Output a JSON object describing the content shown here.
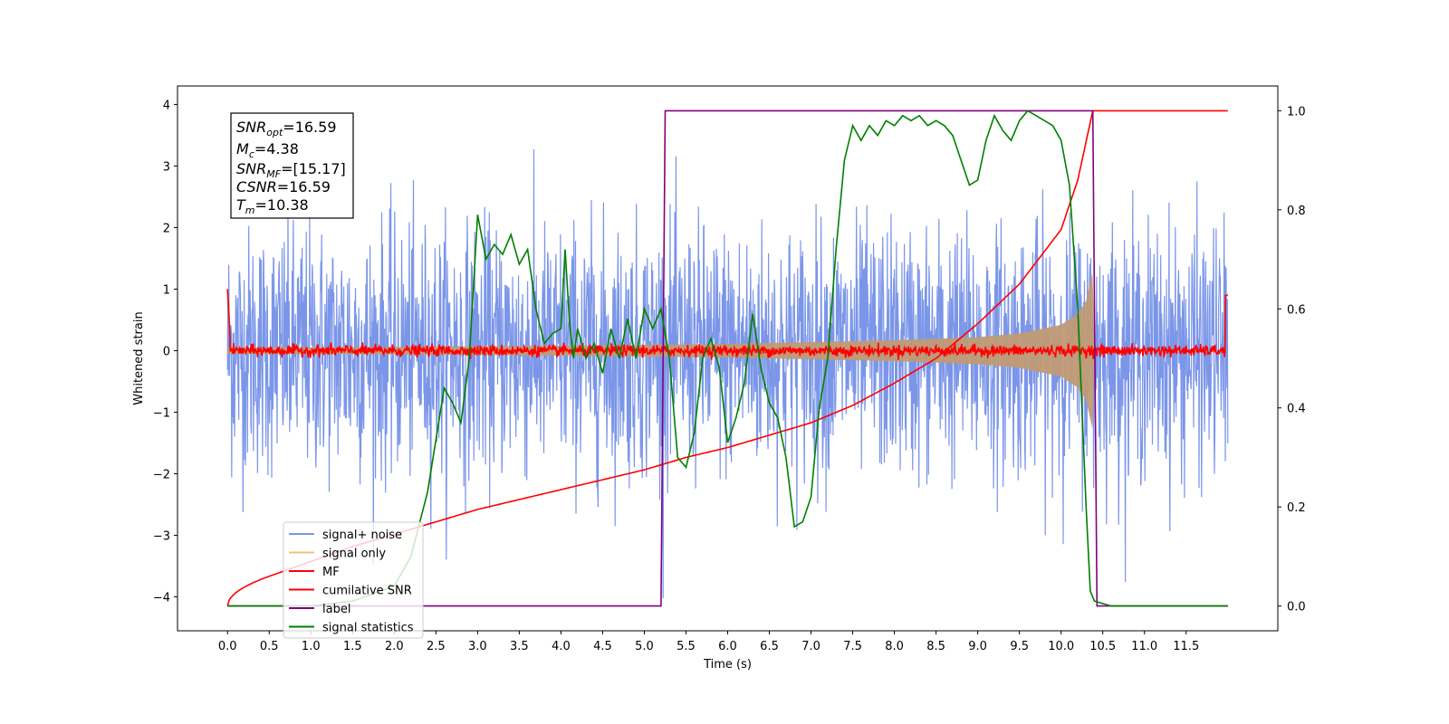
{
  "chart_data": {
    "type": "line",
    "xlabel": "Time (s)",
    "ylabel": "Whitened strain",
    "xlim": [
      -0.6,
      12.6
    ],
    "ylim": [
      -4.55,
      4.3
    ],
    "y2lim": [
      -0.05,
      1.05
    ],
    "x_ticks": [
      "0.0",
      "0.5",
      "1.0",
      "1.5",
      "2.0",
      "2.5",
      "3.0",
      "3.5",
      "4.0",
      "4.5",
      "5.0",
      "5.5",
      "6.0",
      "6.5",
      "7.0",
      "7.5",
      "8.0",
      "8.5",
      "9.0",
      "9.5",
      "10.0",
      "10.5",
      "11.0",
      "11.5"
    ],
    "y_ticks": [
      4,
      3,
      2,
      1,
      0,
      -1,
      -2,
      -3,
      -4
    ],
    "y2_ticks": [
      "1.0",
      "0.8",
      "0.6",
      "0.4",
      "0.2",
      "0.0"
    ],
    "grid": false,
    "legend_position": "lower-left",
    "annotation": {
      "snr_opt": "=16.59",
      "mc": "=4.38",
      "snr_mf": "=[15.17]",
      "csnr": "=16.59",
      "tm": "=10.38"
    },
    "series": [
      {
        "name": "signal+ noise",
        "color": "#7b96e8",
        "axis": "left",
        "description_amplitude": 1.0
      },
      {
        "name": "signal only",
        "color": "#f5c07a",
        "axis": "left",
        "envelope": [
          [
            0.0,
            0.05
          ],
          [
            2.0,
            0.06
          ],
          [
            4.0,
            0.08
          ],
          [
            6.0,
            0.11
          ],
          [
            8.0,
            0.17
          ],
          [
            9.0,
            0.22
          ],
          [
            9.5,
            0.28
          ],
          [
            10.0,
            0.42
          ],
          [
            10.2,
            0.6
          ],
          [
            10.3,
            0.8
          ],
          [
            10.38,
            1.3
          ],
          [
            10.4,
            0.0
          ]
        ]
      },
      {
        "name": "MF",
        "color": "#ff0000",
        "axis": "left"
      },
      {
        "name": "cumilative SNR",
        "color": "#ff0000",
        "axis": "right",
        "x": [
          0.0,
          0.5,
          1.0,
          1.5,
          2.0,
          2.5,
          3.0,
          3.5,
          4.0,
          4.5,
          5.0,
          5.5,
          6.0,
          6.5,
          7.0,
          7.5,
          8.0,
          8.5,
          9.0,
          9.5,
          10.0,
          10.2,
          10.38,
          11.0,
          12.0
        ],
        "y": [
          0.0,
          0.06,
          0.09,
          0.12,
          0.145,
          0.17,
          0.195,
          0.215,
          0.235,
          0.255,
          0.275,
          0.3,
          0.32,
          0.345,
          0.37,
          0.405,
          0.45,
          0.5,
          0.57,
          0.65,
          0.76,
          0.86,
          1.0,
          1.0,
          1.0
        ]
      },
      {
        "name": "label",
        "color": "#800080",
        "axis": "right",
        "x": [
          0.0,
          5.2,
          5.25,
          10.38,
          10.43,
          12.0
        ],
        "y": [
          0.0,
          0.0,
          1.0,
          1.0,
          0.0,
          0.0
        ]
      },
      {
        "name": "signal statistics",
        "color": "#008000",
        "axis": "right",
        "x": [
          0.0,
          1.0,
          1.5,
          2.0,
          2.2,
          2.4,
          2.6,
          2.7,
          2.8,
          2.9,
          3.0,
          3.1,
          3.2,
          3.3,
          3.4,
          3.5,
          3.6,
          3.7,
          3.8,
          3.9,
          4.0,
          4.05,
          4.1,
          4.15,
          4.2,
          4.3,
          4.4,
          4.5,
          4.6,
          4.7,
          4.8,
          4.9,
          5.0,
          5.1,
          5.2,
          5.3,
          5.4,
          5.5,
          5.6,
          5.7,
          5.8,
          5.9,
          6.0,
          6.1,
          6.2,
          6.3,
          6.4,
          6.5,
          6.6,
          6.7,
          6.8,
          6.9,
          7.0,
          7.1,
          7.2,
          7.3,
          7.4,
          7.5,
          7.6,
          7.7,
          7.8,
          7.9,
          8.0,
          8.1,
          8.2,
          8.3,
          8.4,
          8.5,
          8.6,
          8.7,
          8.8,
          8.9,
          9.0,
          9.1,
          9.2,
          9.3,
          9.4,
          9.5,
          9.6,
          9.7,
          9.8,
          9.9,
          10.0,
          10.1,
          10.2,
          10.3,
          10.35,
          10.4,
          10.5,
          10.6,
          10.7,
          11.0,
          12.0
        ],
        "y": [
          0.0,
          0.0,
          0.01,
          0.04,
          0.1,
          0.23,
          0.44,
          0.41,
          0.37,
          0.5,
          0.79,
          0.7,
          0.73,
          0.71,
          0.75,
          0.69,
          0.72,
          0.6,
          0.53,
          0.55,
          0.56,
          0.72,
          0.58,
          0.5,
          0.56,
          0.5,
          0.53,
          0.47,
          0.56,
          0.5,
          0.58,
          0.5,
          0.6,
          0.56,
          0.6,
          0.5,
          0.3,
          0.28,
          0.35,
          0.5,
          0.54,
          0.48,
          0.33,
          0.38,
          0.45,
          0.59,
          0.48,
          0.41,
          0.38,
          0.3,
          0.16,
          0.17,
          0.22,
          0.4,
          0.5,
          0.72,
          0.9,
          0.97,
          0.94,
          0.97,
          0.95,
          0.98,
          0.97,
          0.99,
          0.98,
          0.99,
          0.97,
          0.98,
          0.97,
          0.95,
          0.9,
          0.85,
          0.86,
          0.94,
          0.99,
          0.96,
          0.94,
          0.98,
          1.0,
          0.99,
          0.98,
          0.97,
          0.94,
          0.85,
          0.6,
          0.2,
          0.03,
          0.01,
          0.005,
          0.0,
          0.0,
          0.0,
          0.0
        ]
      }
    ]
  }
}
